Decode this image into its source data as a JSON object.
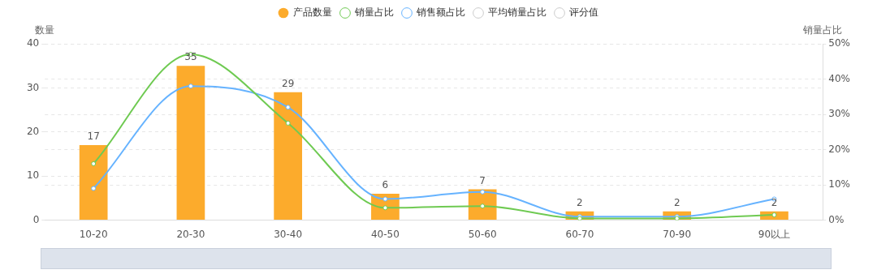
{
  "chart_data": {
    "type": "bar",
    "ylabel": "数量",
    "y2label": "销量占比",
    "categories": [
      "10-20",
      "20-30",
      "30-40",
      "40-50",
      "50-60",
      "60-70",
      "70-90",
      "90以上"
    ],
    "series": [
      {
        "name": "产品数量",
        "color": "#fcab2c",
        "values": [
          17,
          35,
          29,
          6,
          7,
          2,
          2,
          2
        ],
        "value_labels": [
          "17",
          "35",
          "29",
          "6",
          "7",
          "2",
          "2",
          "2"
        ]
      },
      {
        "name": "销量占比",
        "type": "line",
        "axis": "y2",
        "color": "#6fca52",
        "values": [
          16,
          47,
          27.5,
          3.5,
          4,
          0.5,
          0.5,
          1.5
        ]
      },
      {
        "name": "销售额占比",
        "type": "line",
        "axis": "y2",
        "color": "#66b3ff",
        "values": [
          9,
          38,
          32,
          6,
          8,
          1,
          1,
          6
        ]
      },
      {
        "name": "平均销量占比",
        "type": "line",
        "axis": "y2",
        "color": "#cccccc",
        "values": [
          null,
          null,
          null,
          null,
          null,
          null,
          null,
          null
        ]
      },
      {
        "name": "评分值",
        "type": "line",
        "axis": "y2",
        "color": "#cccccc",
        "values": [
          null,
          null,
          null,
          null,
          null,
          null,
          null,
          null
        ]
      }
    ],
    "ylim": [
      0,
      40
    ],
    "yticks": [
      0,
      10,
      20,
      30,
      40
    ],
    "y2lim": [
      0,
      50
    ],
    "y2ticks": [
      {
        "value": 0,
        "label": "0%"
      },
      {
        "value": 10,
        "label": "10%"
      },
      {
        "value": 20,
        "label": "20%"
      },
      {
        "value": 30,
        "label": "30%"
      },
      {
        "value": 40,
        "label": "40%"
      },
      {
        "value": 50,
        "label": "50%"
      }
    ],
    "grid": "y",
    "legend": "top",
    "marker": "circle",
    "line_style": "solid"
  }
}
